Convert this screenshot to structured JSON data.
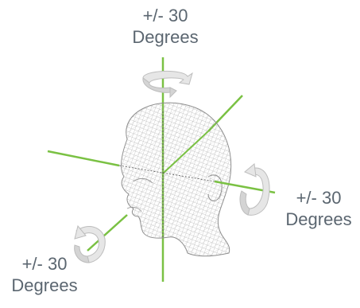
{
  "labels": {
    "yaw": {
      "line1": "+/- 30",
      "line2": "Degrees"
    },
    "roll": {
      "line1": "+/- 30",
      "line2": "Degrees"
    },
    "pitch": {
      "line1": "+/- 30",
      "line2": "Degrees"
    }
  },
  "colors": {
    "axis": "#7ac143",
    "label_text": "#5b6670",
    "wireframe": "#9a9a9a",
    "arrow_fill": "#e6e6e6",
    "arrow_stroke": "#bdbdbd"
  },
  "icons": {
    "head": "wireframe-head-icon",
    "rotation_arrow": "curved-rotation-arrow-icon"
  }
}
